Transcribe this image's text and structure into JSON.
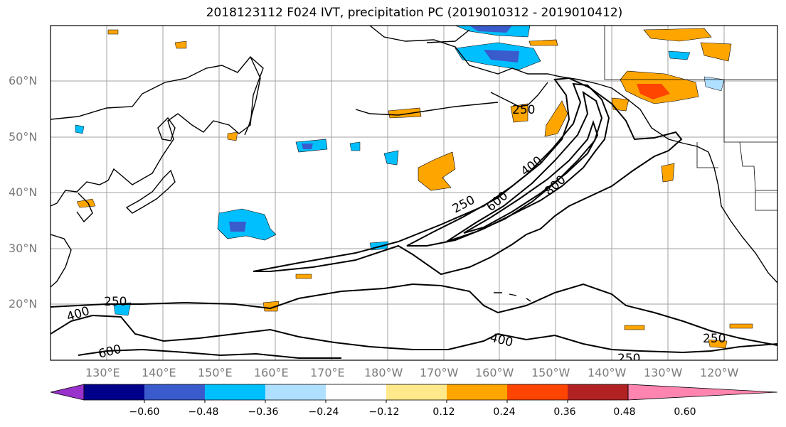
{
  "title": "2018123112 F024 IVT, precipitation PC (2019010312 - 2019010412)",
  "map": {
    "lat_labels": [
      "60°N",
      "50°N",
      "40°N",
      "30°N",
      "20°N"
    ],
    "lon_labels": [
      "130°E",
      "140°E",
      "150°E",
      "160°E",
      "170°E",
      "180°W",
      "170°W",
      "160°W",
      "150°W",
      "140°W",
      "130°W",
      "120°W"
    ],
    "ivt_contour_labels": [
      "250",
      "400",
      "600",
      "800",
      "250",
      "400",
      "600",
      "400",
      "250",
      "250",
      "250"
    ]
  },
  "colorbar": {
    "ticks": [
      "−0.60",
      "−0.48",
      "−0.36",
      "−0.24",
      "−0.12",
      "0.12",
      "0.24",
      "0.36",
      "0.48",
      "0.60"
    ],
    "colors": [
      "#9932cc",
      "#00008b",
      "#3a5bcc",
      "#00bfff",
      "#b0e0ff",
      "#ffffff",
      "#ffe98a",
      "#ffa500",
      "#ff4500",
      "#b22222",
      "#ff85b0"
    ]
  }
}
